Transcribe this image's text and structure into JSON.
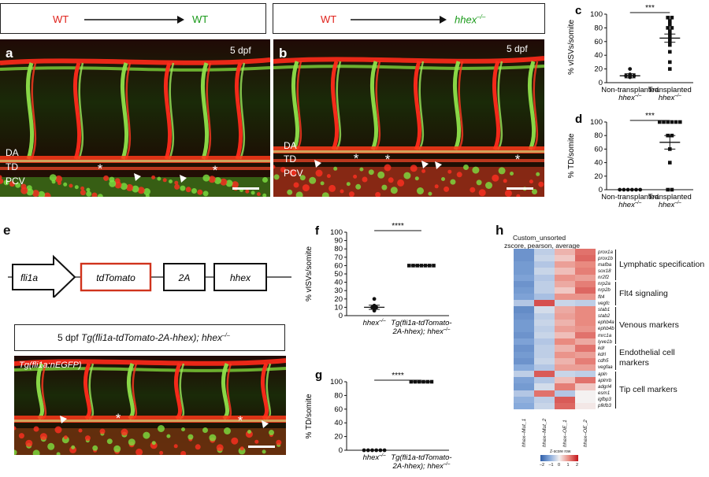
{
  "panels": {
    "a": {
      "letter": "a",
      "from": "WT",
      "to": "WT",
      "stage": "5 dpf",
      "labels": [
        "DA",
        "TD",
        "PCV"
      ]
    },
    "b": {
      "letter": "b",
      "from": "WT",
      "to": "hhex",
      "to_sup": "–/–",
      "stage": "5 dpf",
      "labels": [
        "DA",
        "TD",
        "PCV"
      ]
    },
    "e": {
      "letter": "e",
      "construct": [
        "fli1a",
        "tdTomato",
        "2A",
        "hhex"
      ],
      "caption_prefix": "5 dpf ",
      "caption_italic": "Tg(fli1a-tdTomato-2A-hhex); hhex",
      "caption_sup": "–/–",
      "image_label": "Tg(fli1a:nEGFP)"
    },
    "h": {
      "letter": "h",
      "title_lines": [
        "Custom_unsorted",
        "zscore, pearson, average"
      ],
      "genes": [
        "prox1a",
        "prox1b",
        "mafba",
        "sox18",
        "nr2f2",
        "nrp2a",
        "nrp2b",
        "flt4",
        "vegfc",
        "stab1",
        "stab2",
        "ephb4a",
        "ephb4b",
        "mrc1a",
        "lyve1b",
        "kdr",
        "kdrl",
        "cdh5",
        "vegfaa",
        "apln",
        "aplnrb",
        "adgrl4",
        "esm1",
        "igfbp3",
        "pfkfb3"
      ],
      "groups": [
        {
          "lines": [
            "Lymphatic specification"
          ],
          "from": 0,
          "to": 4
        },
        {
          "lines": [
            "Flt4 signaling"
          ],
          "from": 5,
          "to": 8
        },
        {
          "lines": [
            "Venous markers"
          ],
          "from": 9,
          "to": 14
        },
        {
          "lines": [
            "Endothelial cell",
            "markers"
          ],
          "from": 15,
          "to": 18
        },
        {
          "lines": [
            "Tip cell markers"
          ],
          "from": 19,
          "to": 24
        }
      ],
      "samples": [
        "hhex–Mut_1",
        "hhex–Mut_2",
        "hhex–OE_1",
        "hhex–OE_2"
      ],
      "legend_title": "Z-score row",
      "legend_ticks": [
        "–2",
        "–1",
        "0",
        "1",
        "2"
      ],
      "z": [
        [
          -1.3,
          -0.5,
          0.6,
          1.2
        ],
        [
          -1.3,
          -0.4,
          0.4,
          1.3
        ],
        [
          -1.2,
          -0.6,
          0.8,
          1.0
        ],
        [
          -1.2,
          -0.4,
          0.5,
          1.1
        ],
        [
          -1.1,
          -0.6,
          0.9,
          0.8
        ],
        [
          -1.3,
          -0.5,
          0.7,
          1.1
        ],
        [
          -1.2,
          -0.5,
          0.4,
          1.3
        ],
        [
          -1.1,
          -0.7,
          0.9,
          0.9
        ],
        [
          -0.6,
          1.5,
          -0.4,
          -0.5
        ],
        [
          -1.4,
          -0.3,
          0.7,
          1.0
        ],
        [
          -1.3,
          -0.5,
          0.8,
          1.0
        ],
        [
          -1.2,
          -0.4,
          0.6,
          1.0
        ],
        [
          -1.2,
          -0.5,
          0.8,
          0.9
        ],
        [
          -1.3,
          -0.4,
          0.5,
          1.2
        ],
        [
          -1.1,
          -0.6,
          1.0,
          0.7
        ],
        [
          -1.3,
          -0.5,
          0.6,
          1.2
        ],
        [
          -1.2,
          -0.5,
          0.9,
          0.8
        ],
        [
          -1.3,
          -0.4,
          0.6,
          1.1
        ],
        [
          -1.0,
          -0.6,
          0.8,
          0.8
        ],
        [
          -0.5,
          1.4,
          -0.4,
          -0.5
        ],
        [
          -1.1,
          -0.6,
          0.5,
          1.2
        ],
        [
          -1.2,
          -0.3,
          1.1,
          0.4
        ],
        [
          -0.6,
          1.2,
          -0.6,
          0.0
        ],
        [
          -0.9,
          -0.5,
          1.4,
          0.0
        ],
        [
          -1.0,
          -0.4,
          1.3,
          0.1
        ]
      ]
    }
  },
  "chart_data": [
    {
      "panel": "c",
      "letter": "c",
      "type": "scatter",
      "ylabel": "% vISVs/somite",
      "ylim": [
        0,
        100
      ],
      "yticks": [
        0,
        20,
        40,
        60,
        80,
        100
      ],
      "categories": [
        {
          "lines": [
            "Non-transplanted"
          ],
          "ital": "hhex",
          "sup": "–/–"
        },
        {
          "lines": [
            "Transplanted"
          ],
          "ital": "hhex",
          "sup": "–/–"
        }
      ],
      "points": [
        [
          10,
          8,
          12,
          10,
          9,
          11,
          10,
          20
        ],
        [
          95,
          95,
          90,
          85,
          80,
          80,
          75,
          70,
          65,
          60,
          55,
          45,
          30,
          20
        ]
      ],
      "means": [
        10,
        65
      ],
      "sem": [
        3,
        6
      ],
      "significance": "***"
    },
    {
      "panel": "d",
      "letter": "d",
      "type": "scatter",
      "ylabel": "% TD/somite",
      "ylim": [
        0,
        100
      ],
      "yticks": [
        0,
        20,
        40,
        60,
        80,
        100
      ],
      "categories": [
        {
          "lines": [
            "Non-transplanted"
          ],
          "ital": "hhex",
          "sup": "–/–"
        },
        {
          "lines": [
            "Transplanted"
          ],
          "ital": "hhex",
          "sup": "–/–"
        }
      ],
      "points": [
        [
          0,
          0,
          0,
          0,
          0,
          0
        ],
        [
          100,
          100,
          100,
          100,
          100,
          100,
          80,
          80,
          60,
          40,
          0,
          0
        ]
      ],
      "means": [
        0,
        70
      ],
      "sem": [
        0,
        10
      ],
      "significance": "***"
    },
    {
      "panel": "f",
      "letter": "f",
      "type": "scatter",
      "ylabel": "% vISVs/somite",
      "ylim": [
        0,
        100
      ],
      "yticks": [
        0,
        10,
        20,
        30,
        40,
        50,
        60,
        70,
        80,
        90,
        100
      ],
      "categories": [
        {
          "lines": [],
          "ital": "hhex",
          "sup": "–/–"
        },
        {
          "lines": [],
          "ital": "Tg(fli1a-tdTomato-",
          "ital2": "2A-hhex); hhex",
          "sup": "–/–"
        }
      ],
      "points": [
        [
          20,
          12,
          10,
          8,
          6,
          10
        ],
        [
          60,
          60,
          60,
          60,
          60,
          60,
          60
        ]
      ],
      "means": [
        10,
        60
      ],
      "sem": [
        2.5,
        0
      ],
      "significance": "****"
    },
    {
      "panel": "g",
      "letter": "g",
      "type": "scatter",
      "ylabel": "% TD/somite",
      "ylim": [
        0,
        100
      ],
      "yticks": [
        0,
        20,
        40,
        60,
        80,
        100
      ],
      "categories": [
        {
          "lines": [],
          "ital": "hhex",
          "sup": "–/–"
        },
        {
          "lines": [],
          "ital": "Tg(fli1a-tdTomato-",
          "ital2": "2A-hhex); hhex",
          "sup": "–/–"
        }
      ],
      "points": [
        [
          0,
          0,
          0,
          0,
          0,
          0
        ],
        [
          100,
          100,
          100,
          100,
          100,
          100
        ]
      ],
      "means": [
        0,
        100
      ],
      "sem": [
        0,
        0
      ],
      "significance": "****"
    }
  ]
}
